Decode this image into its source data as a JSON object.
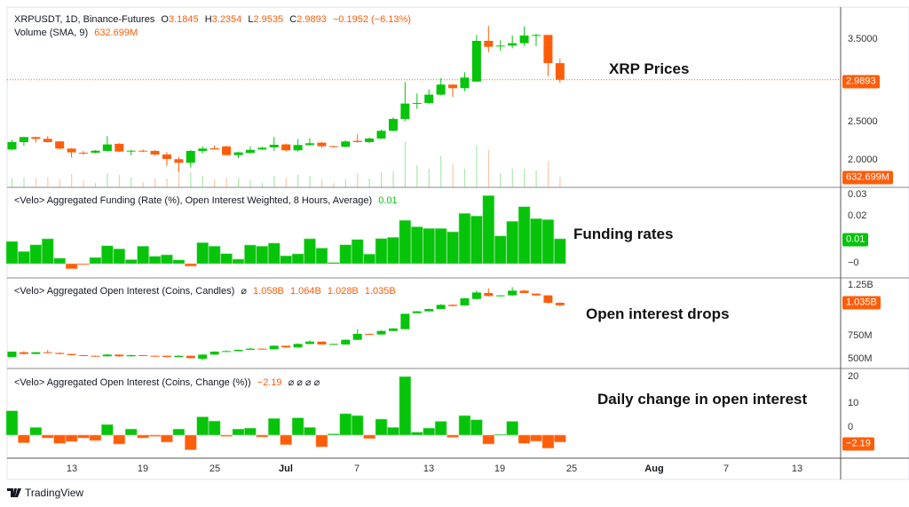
{
  "colors": {
    "up": "#06c40a",
    "down": "#ff5d0a"
  },
  "main_legend": {
    "symbol": "XRPUSDT, 1D, Binance-Futures",
    "o_label": "O",
    "o": "3.1845",
    "h_label": "H",
    "h": "3.2354",
    "l_label": "L",
    "l": "2.9535",
    "c_label": "C",
    "c": "2.9893",
    "change": "−0.1952 (−6.13%)",
    "volume_label": "Volume (SMA, 9)",
    "volume_value": "632.699M"
  },
  "funding_legend": {
    "title": "<Velo> Aggregated Funding (Rate (%), Open Interest Weighted, 8 Hours, Average)",
    "value": "0.01"
  },
  "oi_legend": {
    "title": "<Velo> Aggregated Open Interest (Coins, Candles)",
    "icon": "⌀",
    "o": "1.058B",
    "h": "1.064B",
    "l": "1.028B",
    "c": "1.035B"
  },
  "change_legend": {
    "title": "<Velo> Aggregated Open Interest (Coins, Change (%))",
    "value": "−2.19",
    "icons": "⌀ ⌀ ⌀ ⌀"
  },
  "annotations": {
    "price": "XRP Prices",
    "funding": "Funding rates",
    "oi": "Open interest drops",
    "change": "Daily change in open interest"
  },
  "price_axis": {
    "ticks": [
      "3.5000",
      "2.5000",
      "2.0000"
    ],
    "last_label": "2.9893",
    "volume_label": "632.699M"
  },
  "funding_axis": {
    "ticks": [
      "0.03",
      "0.02",
      "−0"
    ],
    "last_label": "0.01"
  },
  "oi_axis": {
    "ticks": [
      "1.25B",
      "750M",
      "500M"
    ],
    "last_label": "1.035B"
  },
  "change_axis": {
    "ticks": [
      "20",
      "10",
      "0"
    ],
    "last_label": "−2.19"
  },
  "x_axis": {
    "ticks": [
      "13",
      "19",
      "25",
      "Jul",
      "7",
      "13",
      "19",
      "25",
      "Aug",
      "7",
      "13"
    ]
  },
  "branding": {
    "logo_text": "TradingView"
  },
  "chart_data": [
    {
      "type": "candlestick",
      "title": "XRPUSDT, 1D, Binance-Futures",
      "dates": [
        "Jun 8",
        "Jun 9",
        "Jun 10",
        "Jun 11",
        "Jun 12",
        "Jun 13",
        "Jun 14",
        "Jun 15",
        "Jun 16",
        "Jun 17",
        "Jun 18",
        "Jun 19",
        "Jun 20",
        "Jun 21",
        "Jun 22",
        "Jun 23",
        "Jun 24",
        "Jun 25",
        "Jun 26",
        "Jun 27",
        "Jun 28",
        "Jun 29",
        "Jun 30",
        "Jul 1",
        "Jul 2",
        "Jul 3",
        "Jul 4",
        "Jul 5",
        "Jul 6",
        "Jul 7",
        "Jul 8",
        "Jul 9",
        "Jul 10",
        "Jul 11",
        "Jul 12",
        "Jul 13",
        "Jul 14",
        "Jul 15",
        "Jul 16",
        "Jul 17",
        "Jul 18",
        "Jul 19",
        "Jul 20",
        "Jul 21",
        "Jul 22",
        "Jul 23",
        "Jul 24"
      ],
      "ylim": [
        1.85,
        3.8
      ],
      "ohlc": [
        [
          2.164,
          2.28,
          2.154,
          2.252
        ],
        [
          2.252,
          2.315,
          2.21,
          2.311
        ],
        [
          2.311,
          2.315,
          2.245,
          2.29
        ],
        [
          2.29,
          2.322,
          2.245,
          2.252
        ],
        [
          2.26,
          2.26,
          2.16,
          2.175
        ],
        [
          2.175,
          2.182,
          2.07,
          2.13
        ],
        [
          2.126,
          2.147,
          2.1,
          2.12
        ],
        [
          2.126,
          2.157,
          2.12,
          2.15
        ],
        [
          2.147,
          2.322,
          2.14,
          2.224
        ],
        [
          2.231,
          2.24,
          2.133,
          2.14
        ],
        [
          2.14,
          2.16,
          2.095,
          2.15
        ],
        [
          2.15,
          2.164,
          2.133,
          2.14
        ],
        [
          2.147,
          2.157,
          2.09,
          2.105
        ],
        [
          2.105,
          2.133,
          1.97,
          2.052
        ],
        [
          2.05,
          2.077,
          1.902,
          2.007
        ],
        [
          2.007,
          2.157,
          1.95,
          2.147
        ],
        [
          2.147,
          2.2,
          2.12,
          2.175
        ],
        [
          2.178,
          2.21,
          2.164,
          2.164
        ],
        [
          2.2,
          2.21,
          2.091,
          2.098
        ],
        [
          2.098,
          2.14,
          2.063,
          2.13
        ],
        [
          2.123,
          2.2,
          2.115,
          2.16
        ],
        [
          2.164,
          2.2,
          2.157,
          2.185
        ],
        [
          2.189,
          2.312,
          2.147,
          2.22
        ],
        [
          2.224,
          2.235,
          2.14,
          2.154
        ],
        [
          2.154,
          2.287,
          2.14,
          2.217
        ],
        [
          2.217,
          2.297,
          2.21,
          2.238
        ],
        [
          2.245,
          2.252,
          2.182,
          2.203
        ],
        [
          2.203,
          2.21,
          2.19,
          2.196
        ],
        [
          2.196,
          2.273,
          2.189,
          2.259
        ],
        [
          2.266,
          2.343,
          2.245,
          2.252
        ],
        [
          2.252,
          2.308,
          2.238,
          2.294
        ],
        [
          2.294,
          2.399,
          2.287,
          2.385
        ],
        [
          2.385,
          2.546,
          2.378,
          2.525
        ],
        [
          2.525,
          2.962,
          2.497,
          2.707
        ],
        [
          2.707,
          2.826,
          2.644,
          2.714
        ],
        [
          2.714,
          2.875,
          2.7,
          2.812
        ],
        [
          2.812,
          3.007,
          2.805,
          2.931
        ],
        [
          2.931,
          2.931,
          2.784,
          2.889
        ],
        [
          2.889,
          3.077,
          2.854,
          3.014
        ],
        [
          2.966,
          3.518,
          2.966,
          3.448
        ],
        [
          3.448,
          3.623,
          3.315,
          3.378
        ],
        [
          3.385,
          3.455,
          3.33,
          3.392
        ],
        [
          3.392,
          3.511,
          3.36,
          3.42
        ],
        [
          3.42,
          3.616,
          3.385,
          3.511
        ],
        [
          3.511,
          3.532,
          3.385,
          3.518
        ],
        [
          3.518,
          3.518,
          3.028,
          3.1845
        ],
        [
          3.1845,
          3.2354,
          2.9535,
          2.9893
        ]
      ],
      "last_price": 2.9893,
      "volume_m": [
        440,
        440,
        440,
        440,
        360,
        600,
        320,
        200,
        640,
        560,
        440,
        240,
        400,
        400,
        880,
        680,
        520,
        360,
        440,
        440,
        320,
        200,
        520,
        440,
        560,
        520,
        360,
        200,
        360,
        640,
        400,
        680,
        720,
        2040,
        1000,
        840,
        1400,
        1040,
        840,
        1880,
        1680,
        640,
        840,
        840,
        760,
        1160,
        480
      ]
    },
    {
      "type": "bar",
      "title": "<Velo> Aggregated Funding (Rate (%), Open Interest Weighted, 8 Hours, Average)",
      "ylim": [
        -0.004,
        0.031
      ],
      "values": [
        0.0093,
        0.0051,
        0.0079,
        0.0104,
        0.0023,
        -0.0021,
        -0.0004,
        0.0026,
        0.0075,
        0.0062,
        0.0017,
        0.0073,
        0.0031,
        0.0037,
        0.0016,
        -0.001,
        0.0088,
        0.0073,
        0.0042,
        0.0019,
        0.0078,
        0.0073,
        0.0086,
        0.0033,
        0.0041,
        0.0104,
        0.0065,
        0.0005,
        0.0079,
        0.0101,
        0.004,
        0.0105,
        0.011,
        0.0181,
        0.0154,
        0.0147,
        0.0147,
        0.0133,
        0.021,
        0.0199,
        0.0284,
        0.0116,
        0.0177,
        0.0238,
        0.0188,
        0.0184,
        0.0104
      ]
    },
    {
      "type": "candlestick",
      "title": "<Velo> Aggregated Open Interest (Coins, Candles)",
      "unit": "B",
      "ylim": [
        0.45,
        1.3
      ],
      "ohlc": [
        [
          0.55,
          0.6,
          0.548,
          0.6
        ],
        [
          0.594,
          0.605,
          0.575,
          0.578
        ],
        [
          0.578,
          0.596,
          0.576,
          0.594
        ],
        [
          0.594,
          0.616,
          0.585,
          0.588
        ],
        [
          0.588,
          0.59,
          0.575,
          0.578
        ],
        [
          0.578,
          0.58,
          0.565,
          0.567
        ],
        [
          0.567,
          0.57,
          0.558,
          0.561
        ],
        [
          0.561,
          0.563,
          0.552,
          0.556
        ],
        [
          0.556,
          0.578,
          0.554,
          0.572
        ],
        [
          0.572,
          0.574,
          0.552,
          0.556
        ],
        [
          0.556,
          0.572,
          0.554,
          0.567
        ],
        [
          0.567,
          0.568,
          0.558,
          0.561
        ],
        [
          0.561,
          0.563,
          0.552,
          0.556
        ],
        [
          0.561,
          0.563,
          0.546,
          0.55
        ],
        [
          0.55,
          0.565,
          0.548,
          0.561
        ],
        [
          0.561,
          0.563,
          0.535,
          0.539
        ],
        [
          0.533,
          0.575,
          0.517,
          0.572
        ],
        [
          0.572,
          0.602,
          0.57,
          0.6
        ],
        [
          0.6,
          0.612,
          0.598,
          0.605
        ],
        [
          0.605,
          0.62,
          0.603,
          0.617
        ],
        [
          0.617,
          0.632,
          0.615,
          0.628
        ],
        [
          0.628,
          0.63,
          0.618,
          0.622
        ],
        [
          0.622,
          0.66,
          0.62,
          0.655
        ],
        [
          0.655,
          0.658,
          0.636,
          0.639
        ],
        [
          0.639,
          0.678,
          0.637,
          0.672
        ],
        [
          0.672,
          0.705,
          0.67,
          0.694
        ],
        [
          0.694,
          0.696,
          0.664,
          0.667
        ],
        [
          0.667,
          0.675,
          0.665,
          0.672
        ],
        [
          0.667,
          0.715,
          0.665,
          0.711
        ],
        [
          0.711,
          0.811,
          0.709,
          0.767
        ],
        [
          0.767,
          0.769,
          0.758,
          0.761
        ],
        [
          0.761,
          0.8,
          0.759,
          0.794
        ],
        [
          0.794,
          0.822,
          0.792,
          0.817
        ],
        [
          0.811,
          0.955,
          0.809,
          0.955
        ],
        [
          0.961,
          0.982,
          0.959,
          0.978
        ],
        [
          0.978,
          1.004,
          0.976,
          1.0
        ],
        [
          1.0,
          1.045,
          0.998,
          1.039
        ],
        [
          1.039,
          1.042,
          1.024,
          1.028
        ],
        [
          1.033,
          1.105,
          1.03,
          1.1
        ],
        [
          1.094,
          1.172,
          1.09,
          1.155
        ],
        [
          1.15,
          1.194,
          1.118,
          1.122
        ],
        [
          1.122,
          1.13,
          1.118,
          1.128
        ],
        [
          1.128,
          1.205,
          1.125,
          1.172
        ],
        [
          1.172,
          1.18,
          1.148,
          1.15
        ],
        [
          1.144,
          1.148,
          1.126,
          1.128
        ],
        [
          1.128,
          1.13,
          1.052,
          1.058
        ],
        [
          1.058,
          1.064,
          1.028,
          1.035
        ]
      ]
    },
    {
      "type": "bar",
      "title": "<Velo> Aggregated Open Interest (Coins, Change (%))",
      "ylim": [
        -6,
        20
      ],
      "values": [
        7.6,
        -2.4,
        2.4,
        -0.9,
        -2.6,
        -2.0,
        -0.9,
        -1.7,
        3.3,
        -2.8,
        1.9,
        -0.9,
        -0.4,
        -2.2,
        1.9,
        -4.6,
        5.7,
        4.4,
        -0.4,
        1.9,
        2.2,
        -0.6,
        5.2,
        -3.0,
        5.4,
        2.4,
        -3.7,
        0.4,
        6.7,
        6.1,
        -1.1,
        5.0,
        2.4,
        18.3,
        0.9,
        2.2,
        4.3,
        -0.7,
        6.1,
        4.8,
        -2.8,
        0.2,
        4.3,
        -2.6,
        -1.9,
        -4.1,
        -2.19
      ]
    }
  ]
}
